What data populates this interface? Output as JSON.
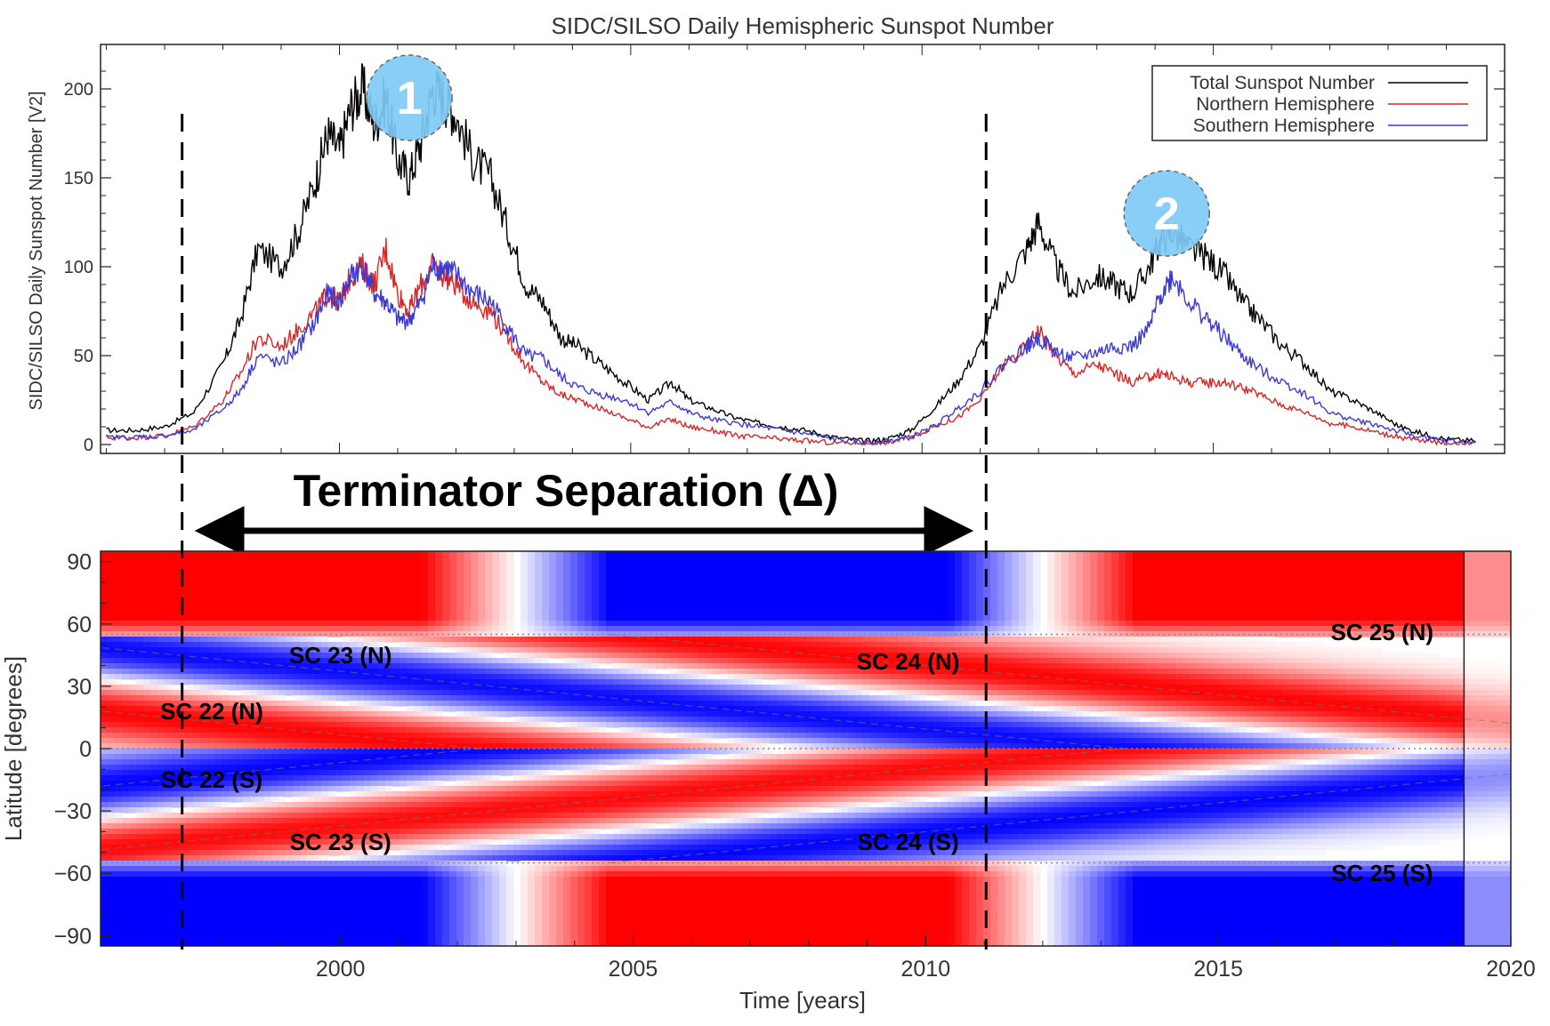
{
  "chart_data": [
    {
      "type": "line",
      "title": "SIDC/SILSO Daily Hemispheric Sunspot Number",
      "ylabel": "SIDC/SILSO Daily Sunspot Number [V2]",
      "xlim": [
        1995.9,
        2020
      ],
      "ylim": [
        -5,
        225
      ],
      "yticks": [
        0,
        50,
        100,
        150,
        200
      ],
      "legend_position": "top-right",
      "series": [
        {
          "name": "Total Sunspot Number",
          "color": "#000000",
          "x": [
            1996.0,
            1996.5,
            1997.0,
            1997.5,
            1998.0,
            1998.3,
            1998.6,
            1999.0,
            1999.3,
            1999.6,
            1999.8,
            2000.0,
            2000.2,
            2000.4,
            2000.6,
            2000.8,
            2001.0,
            2001.2,
            2001.4,
            2001.6,
            2001.8,
            2002.0,
            2002.3,
            2002.6,
            2002.9,
            2003.2,
            2003.5,
            2003.8,
            2004.1,
            2004.5,
            2004.9,
            2005.3,
            2005.7,
            2006.0,
            2006.4,
            2006.8,
            2007.2,
            2007.6,
            2008.0,
            2008.5,
            2009.0,
            2009.4,
            2009.8,
            2010.2,
            2010.6,
            2011.0,
            2011.4,
            2011.8,
            2012.0,
            2012.3,
            2012.6,
            2013.0,
            2013.3,
            2013.6,
            2013.9,
            2014.1,
            2014.3,
            2014.6,
            2014.9,
            2015.2,
            2015.5,
            2015.8,
            2016.2,
            2016.6,
            2017.0,
            2017.4,
            2017.8,
            2018.2,
            2018.6,
            2019.0,
            2019.5
          ],
          "values": [
            8,
            8,
            10,
            18,
            45,
            70,
            110,
            100,
            120,
            150,
            175,
            165,
            190,
            200,
            180,
            195,
            160,
            150,
            170,
            200,
            195,
            185,
            160,
            150,
            120,
            90,
            80,
            60,
            55,
            45,
            35,
            25,
            35,
            25,
            20,
            15,
            12,
            10,
            8,
            4,
            2,
            3,
            8,
            20,
            35,
            55,
            90,
            110,
            125,
            100,
            85,
            95,
            90,
            85,
            100,
            115,
            120,
            110,
            105,
            95,
            80,
            70,
            55,
            45,
            30,
            25,
            18,
            10,
            6,
            3,
            2
          ]
        },
        {
          "name": "Northern Hemisphere",
          "color": "#d62728",
          "x": [
            1996.0,
            1996.5,
            1997.0,
            1997.5,
            1998.0,
            1998.3,
            1998.6,
            1999.0,
            1999.3,
            1999.6,
            1999.8,
            2000.0,
            2000.2,
            2000.4,
            2000.6,
            2000.8,
            2001.0,
            2001.2,
            2001.4,
            2001.6,
            2001.8,
            2002.0,
            2002.3,
            2002.6,
            2002.9,
            2003.2,
            2003.5,
            2003.8,
            2004.1,
            2004.5,
            2004.9,
            2005.3,
            2005.7,
            2006.0,
            2006.4,
            2006.8,
            2007.2,
            2007.6,
            2008.0,
            2008.5,
            2009.0,
            2009.4,
            2009.8,
            2010.2,
            2010.6,
            2011.0,
            2011.4,
            2011.8,
            2012.0,
            2012.3,
            2012.6,
            2013.0,
            2013.3,
            2013.6,
            2013.9,
            2014.1,
            2014.3,
            2014.6,
            2014.9,
            2015.2,
            2015.5,
            2015.8,
            2016.2,
            2016.6,
            2017.0,
            2017.4,
            2017.8,
            2018.2,
            2018.6,
            2019.0,
            2019.5
          ],
          "values": [
            4,
            4,
            5,
            10,
            25,
            40,
            60,
            55,
            65,
            75,
            85,
            80,
            95,
            100,
            90,
            110,
            85,
            75,
            90,
            100,
            95,
            90,
            80,
            75,
            60,
            45,
            35,
            28,
            25,
            20,
            15,
            10,
            14,
            10,
            8,
            5,
            4,
            3,
            2,
            1,
            1,
            1,
            4,
            10,
            15,
            25,
            45,
            55,
            65,
            50,
            40,
            45,
            40,
            35,
            38,
            40,
            38,
            35,
            35,
            35,
            32,
            28,
            22,
            18,
            12,
            10,
            7,
            4,
            2,
            1,
            1
          ]
        },
        {
          "name": "Southern Hemisphere",
          "color": "#3b3bd1",
          "x": [
            1996.0,
            1996.5,
            1997.0,
            1997.5,
            1998.0,
            1998.3,
            1998.6,
            1999.0,
            1999.3,
            1999.6,
            1999.8,
            2000.0,
            2000.2,
            2000.4,
            2000.6,
            2000.8,
            2001.0,
            2001.2,
            2001.4,
            2001.6,
            2001.8,
            2002.0,
            2002.3,
            2002.6,
            2002.9,
            2003.2,
            2003.5,
            2003.8,
            2004.1,
            2004.5,
            2004.9,
            2005.3,
            2005.7,
            2006.0,
            2006.4,
            2006.8,
            2007.2,
            2007.6,
            2008.0,
            2008.5,
            2009.0,
            2009.4,
            2009.8,
            2010.2,
            2010.6,
            2011.0,
            2011.4,
            2011.8,
            2012.0,
            2012.3,
            2012.6,
            2013.0,
            2013.3,
            2013.6,
            2013.9,
            2014.1,
            2014.3,
            2014.6,
            2014.9,
            2015.2,
            2015.5,
            2015.8,
            2016.2,
            2016.6,
            2017.0,
            2017.4,
            2017.8,
            2018.2,
            2018.6,
            2019.0,
            2019.5
          ],
          "values": [
            4,
            4,
            5,
            8,
            20,
            30,
            50,
            45,
            55,
            70,
            85,
            80,
            95,
            100,
            85,
            80,
            70,
            70,
            80,
            100,
            100,
            95,
            85,
            80,
            65,
            50,
            48,
            38,
            32,
            28,
            25,
            18,
            24,
            18,
            14,
            12,
            10,
            8,
            6,
            3,
            1,
            2,
            4,
            10,
            20,
            30,
            45,
            55,
            60,
            52,
            48,
            52,
            55,
            55,
            65,
            85,
            95,
            80,
            70,
            60,
            50,
            42,
            35,
            28,
            18,
            14,
            11,
            7,
            4,
            2,
            1
          ]
        }
      ],
      "annotations": [
        {
          "text": "1",
          "x": 2001.2,
          "y": 200
        },
        {
          "text": "2",
          "x": 2014.2,
          "y": 135
        }
      ]
    },
    {
      "type": "heatmap",
      "xlabel": "Time [years]",
      "ylabel": "Latitude [degrees]",
      "xlim": [
        1995.9,
        2020
      ],
      "ylim": [
        -95,
        95
      ],
      "xticks": [
        2000,
        2005,
        2010,
        2015,
        2020
      ],
      "yticks": [
        90,
        60,
        30,
        0,
        -30,
        -60,
        -90
      ],
      "colors": {
        "positive": "#ff0000",
        "negative": "#0000ff",
        "zero": "#ffffff"
      },
      "guide_latitudes": [
        55,
        0,
        -55
      ],
      "bands": [
        {
          "hemisphere": "N",
          "sign": 1,
          "start_year": 1982.6,
          "start_lat": 55,
          "end_year": 2002.4,
          "end_lat": 0
        },
        {
          "hemisphere": "N",
          "sign": -1,
          "start_year": 1993.6,
          "start_lat": 55,
          "end_year": 2013.4,
          "end_lat": 0
        },
        {
          "hemisphere": "N",
          "sign": 1,
          "start_year": 2004.6,
          "start_lat": 55,
          "end_year": 2024.4,
          "end_lat": 0
        },
        {
          "hemisphere": "S",
          "sign": -1,
          "start_year": 1982.6,
          "start_lat": -55,
          "end_year": 2002.4,
          "end_lat": 0
        },
        {
          "hemisphere": "S",
          "sign": 1,
          "start_year": 1993.6,
          "start_lat": -55,
          "end_year": 2013.4,
          "end_lat": 0
        },
        {
          "hemisphere": "S",
          "sign": -1,
          "start_year": 2004.6,
          "start_lat": -55,
          "end_year": 2024.4,
          "end_lat": 0
        }
      ],
      "polar_switch_years": [
        2003.0,
        2012.0
      ],
      "labels": [
        {
          "text": "SC 22 (N)",
          "x": 1997.8,
          "y": 18
        },
        {
          "text": "SC 22 (S)",
          "x": 1997.8,
          "y": -15
        },
        {
          "text": "SC 23 (N)",
          "x": 2000.0,
          "y": 45
        },
        {
          "text": "SC 23 (S)",
          "x": 2000.0,
          "y": -45
        },
        {
          "text": "SC 24 (N)",
          "x": 2009.7,
          "y": 42
        },
        {
          "text": "SC 24 (S)",
          "x": 2009.7,
          "y": -45
        },
        {
          "text": "SC 25 (N)",
          "x": 2017.8,
          "y": 56
        },
        {
          "text": "SC 25 (S)",
          "x": 2017.8,
          "y": -60
        }
      ]
    }
  ],
  "terminator": {
    "label": "Terminator Separation (Δ)",
    "start_year": 1997.3,
    "end_year": 2011.1
  }
}
